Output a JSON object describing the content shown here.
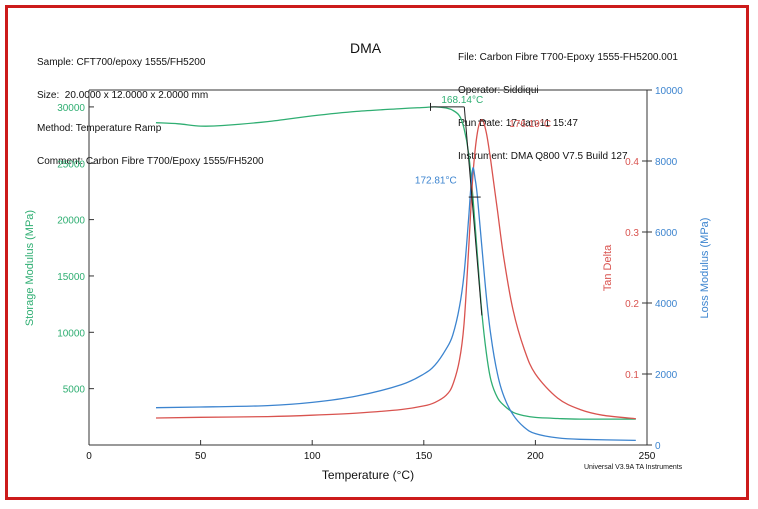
{
  "header": {
    "left_lines": [
      "Sample: CFT700/epoxy 1555/FH5200",
      "Size:  20.0000 x 12.0000 x 2.0000 mm",
      "Method: Temperature Ramp",
      "Comment: Carbon Fibre T700/Epoxy 1555/FH5200"
    ],
    "title": "DMA",
    "right_lines": [
      "File: Carbon Fibre T700-Epoxy 1555-FH5200.001",
      "Operator: Siddiqui",
      "Run Date: 17-Jan-11 15:47",
      "Instrument: DMA Q800 V7.5 Build 127"
    ]
  },
  "footer": "Universal V3.9A TA Instruments",
  "colors": {
    "storage": "#2fae72",
    "tan_delta": "#d9534f",
    "loss": "#3c84cf",
    "axis": "#333333",
    "frame": "#cc1b1b"
  },
  "chart_data": {
    "type": "line",
    "title": "DMA",
    "xlabel": "Temperature (°C)",
    "xlim": [
      0,
      250
    ],
    "x_ticks": [
      0,
      50,
      100,
      150,
      200,
      250
    ],
    "grid": false,
    "axes": {
      "storage": {
        "label": "Storage Modulus (MPa)",
        "lim": [
          0,
          31500
        ],
        "ticks": [
          5000,
          10000,
          15000,
          20000,
          25000,
          30000
        ]
      },
      "tan_delta": {
        "label": "Tan Delta",
        "lim": [
          0,
          0.5
        ],
        "ticks": [
          0.1,
          0.2,
          0.3,
          0.4
        ]
      },
      "loss": {
        "label": "Loss Modulus (MPa)",
        "lim": [
          0,
          10000
        ],
        "ticks": [
          0,
          2000,
          4000,
          6000,
          8000,
          10000
        ]
      }
    },
    "series": [
      {
        "key": "storage",
        "axis": "storage",
        "x": [
          30,
          40,
          50,
          60,
          80,
          100,
          120,
          140,
          150,
          155,
          160,
          163,
          166,
          168,
          170,
          172,
          174,
          176,
          178,
          180,
          183,
          186,
          190,
          195,
          200,
          210,
          220,
          245
        ],
        "values": [
          28600,
          28500,
          28300,
          28350,
          28700,
          29200,
          29600,
          29850,
          29950,
          30000,
          29900,
          29700,
          29200,
          28100,
          26000,
          22000,
          16800,
          11800,
          8200,
          5800,
          4200,
          3500,
          2900,
          2600,
          2450,
          2350,
          2300,
          2300
        ]
      },
      {
        "key": "tan_delta",
        "axis": "tan_delta",
        "x": [
          30,
          50,
          80,
          100,
          120,
          140,
          150,
          155,
          160,
          163,
          166,
          168,
          170,
          172,
          174,
          176,
          178,
          180,
          183,
          186,
          190,
          195,
          200,
          210,
          220,
          230,
          245
        ],
        "values": [
          0.038,
          0.039,
          0.04,
          0.042,
          0.045,
          0.05,
          0.055,
          0.06,
          0.07,
          0.085,
          0.12,
          0.17,
          0.27,
          0.38,
          0.44,
          0.458,
          0.44,
          0.4,
          0.33,
          0.26,
          0.19,
          0.135,
          0.1,
          0.066,
          0.05,
          0.042,
          0.037
        ]
      },
      {
        "key": "loss",
        "axis": "loss",
        "x": [
          30,
          50,
          80,
          100,
          120,
          140,
          150,
          155,
          160,
          163,
          166,
          168,
          170,
          171,
          172,
          173,
          174,
          176,
          178,
          180,
          183,
          186,
          190,
          195,
          200,
          210,
          220,
          245
        ],
        "values": [
          1050,
          1070,
          1110,
          1200,
          1380,
          1700,
          2000,
          2250,
          2700,
          3100,
          3900,
          4800,
          6300,
          7200,
          7800,
          7500,
          7000,
          5600,
          4200,
          3100,
          2000,
          1350,
          850,
          500,
          320,
          200,
          160,
          130
        ]
      }
    ],
    "annotations": [
      {
        "text": "168.14°C",
        "series": "storage",
        "x": 168.14
      },
      {
        "text": "176.19°C",
        "series": "tan_delta",
        "x": 176.19
      },
      {
        "text": "172.81°C",
        "series": "loss",
        "x": 172.81
      }
    ]
  }
}
